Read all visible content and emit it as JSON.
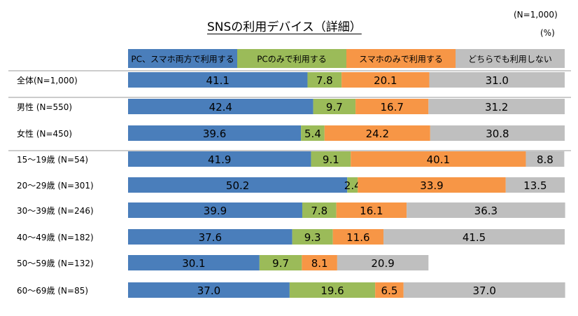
{
  "title": "SNSの利用デバイス（詳細）",
  "n_note": "(N=1,000)",
  "unit": "(%)",
  "chart_data": {
    "type": "bar",
    "orientation": "horizontal",
    "stacked": true,
    "xlim": [
      0,
      100
    ],
    "legend_position": "top",
    "categories": [
      "全体(N=1,000)",
      "男性 (N=550)",
      "女性 (N=450)",
      "15～19歳 (N=54)",
      "20～29歳 (N=301)",
      "30～39歳 (N=246)",
      "40～49歳 (N=182)",
      "50～59歳 (N=132)",
      "60～69歳 (N=85)"
    ],
    "group_separators_after": [
      0,
      2
    ],
    "series": [
      {
        "name": "PC、スマホ両方で利用する",
        "color": "#4a7ebb",
        "values": [
          41.1,
          42.4,
          39.6,
          41.9,
          50.2,
          39.9,
          37.6,
          30.1,
          37.0
        ]
      },
      {
        "name": "PCのみで利用する",
        "color": "#9bbb59",
        "values": [
          7.8,
          9.7,
          5.4,
          9.1,
          2.4,
          7.8,
          9.3,
          9.7,
          19.6
        ]
      },
      {
        "name": "スマホのみで利用する",
        "color": "#f79646",
        "values": [
          20.1,
          16.7,
          24.2,
          40.1,
          33.9,
          16.1,
          11.6,
          8.1,
          6.5
        ]
      },
      {
        "name": "どちらでも利用しない",
        "color": "#bfbfbf",
        "values": [
          31.0,
          31.2,
          30.8,
          8.8,
          13.5,
          36.3,
          41.5,
          20.9,
          37.0
        ]
      }
    ]
  }
}
